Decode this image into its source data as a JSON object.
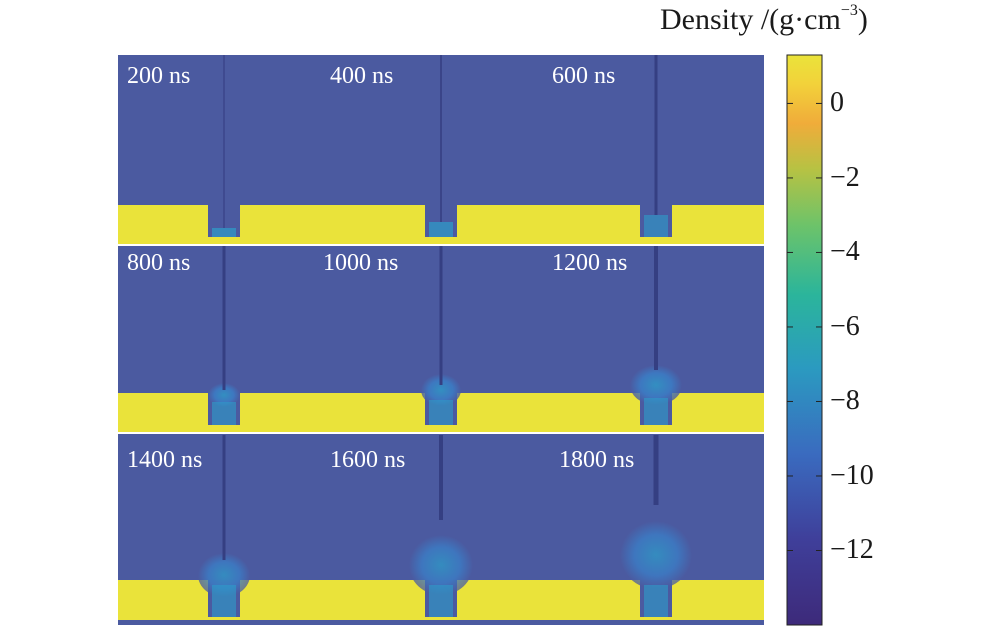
{
  "colorbar": {
    "title": "Density /(g·cm",
    "title_exponent": "−3",
    "title_close": ")",
    "ticks": [
      "0",
      "−2",
      "−4",
      "−6",
      "−8",
      "−10",
      "−12"
    ],
    "tick_values": [
      0,
      -2,
      -4,
      -6,
      -8,
      -10,
      -12
    ],
    "range": [
      -14,
      1.3
    ],
    "colors": [
      "#440154",
      "#3b528b",
      "#21918c",
      "#5ec962",
      "#fde725"
    ]
  },
  "panels": [
    {
      "time": "200 ns"
    },
    {
      "time": "400 ns"
    },
    {
      "time": "600 ns"
    },
    {
      "time": "800 ns"
    },
    {
      "time": "1000 ns"
    },
    {
      "time": "1200 ns"
    },
    {
      "time": "1400 ns"
    },
    {
      "time": "1600 ns"
    },
    {
      "time": "1800 ns"
    }
  ],
  "background_color": "#4b5aa0",
  "solid_color": "#eae33a"
}
